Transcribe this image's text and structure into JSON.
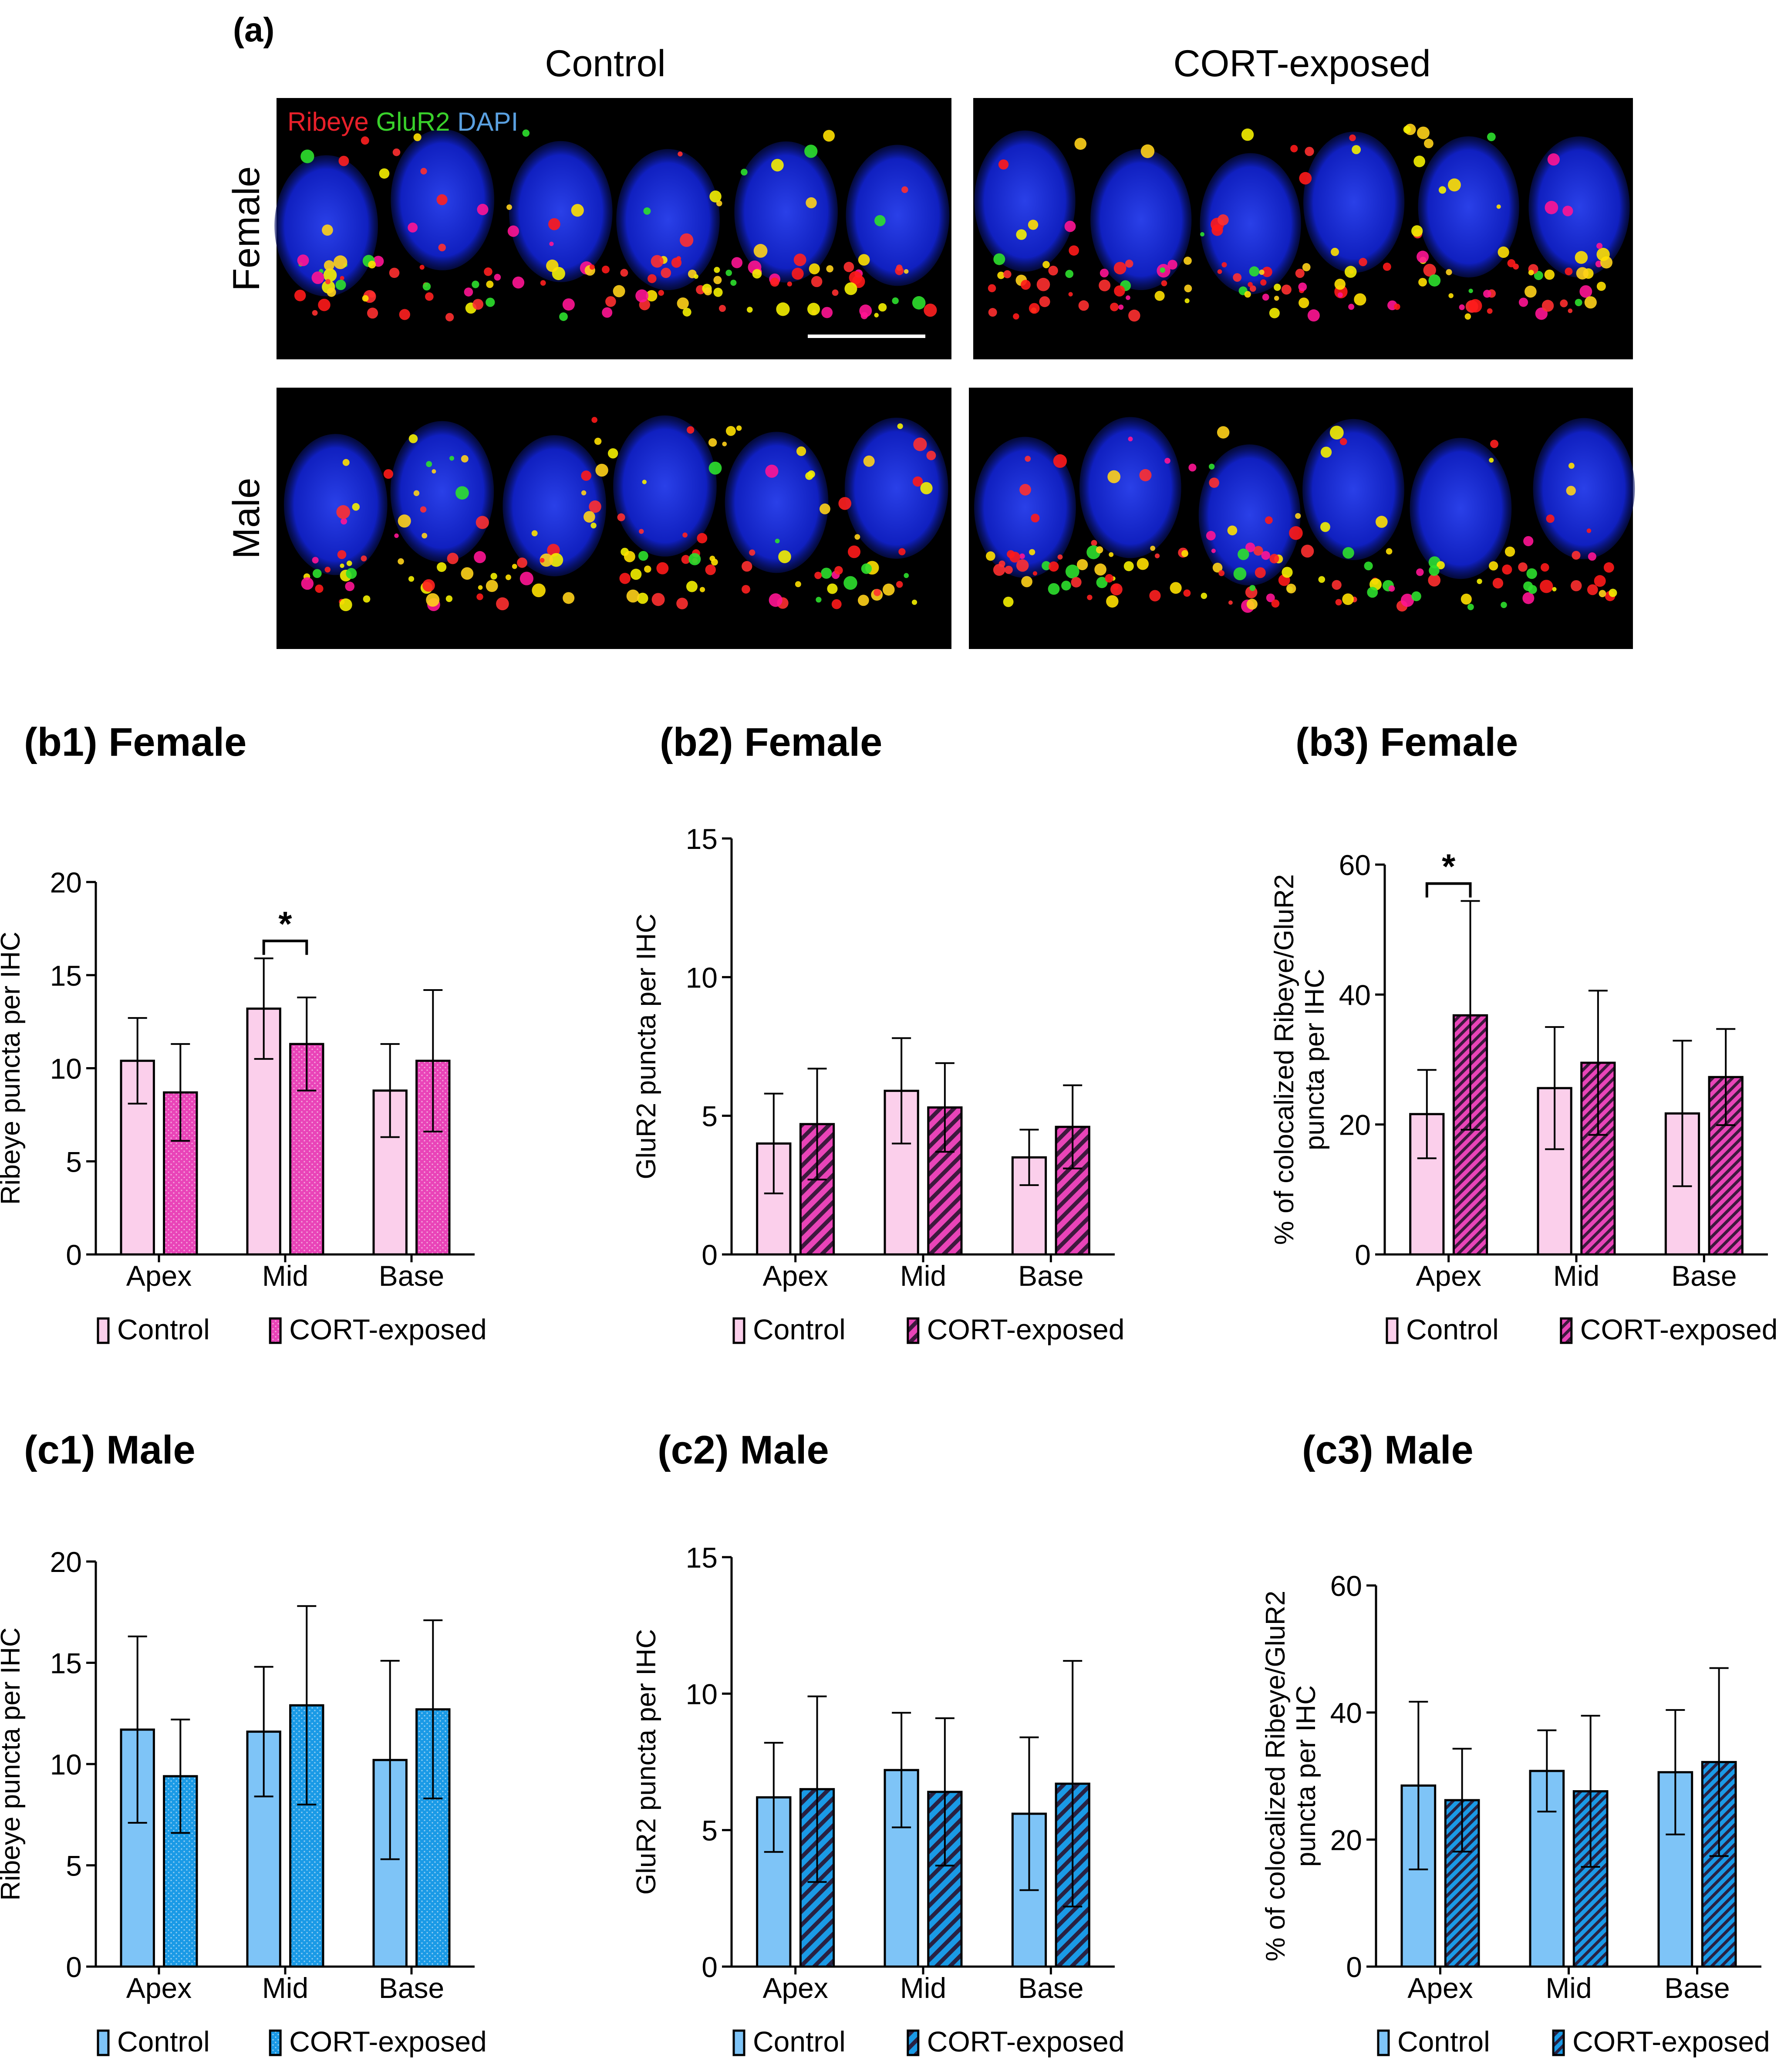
{
  "panel_a": {
    "label": "(a)",
    "columns": [
      "Control",
      "CORT-exposed"
    ],
    "rows": [
      "Female",
      "Male"
    ],
    "stain_legend": [
      {
        "text": "Ribeye",
        "color": "#e8202a"
      },
      {
        "text": "GluR2",
        "color": "#39d12b"
      },
      {
        "text": "DAPI",
        "color": "#5aa0e0"
      }
    ]
  },
  "colors": {
    "female_control": "#fbcfeb",
    "female_cort": "#e944b8",
    "male_control": "#7ec4f7",
    "male_cort": "#1a9ae6"
  },
  "chart_data": [
    {
      "id": "b1",
      "title": "(b1) Female",
      "type": "bar",
      "categories": [
        "Apex",
        "Mid",
        "Base"
      ],
      "ylabel": [
        "Ribeye puncta per IHC"
      ],
      "ylim": [
        0,
        20
      ],
      "yticks": [
        "0",
        "5",
        "10",
        "15",
        "20"
      ],
      "series": [
        {
          "name": "Control",
          "values": [
            10.4,
            13.2,
            8.8
          ],
          "errors": [
            2.3,
            2.7,
            2.5
          ],
          "color": "#fbcfeb",
          "pattern": "none"
        },
        {
          "name": "CORT-exposed",
          "values": [
            8.7,
            11.3,
            10.4
          ],
          "errors": [
            2.6,
            2.5,
            3.8
          ],
          "color": "#e944b8",
          "pattern": "dots"
        }
      ],
      "significance": [
        {
          "category": "Mid",
          "label": "*"
        }
      ]
    },
    {
      "id": "b2",
      "title": "(b2) Female",
      "type": "bar",
      "categories": [
        "Apex",
        "Mid",
        "Base"
      ],
      "ylabel": [
        "GluR2 puncta per IHC"
      ],
      "ylim": [
        0,
        15
      ],
      "yticks": [
        "0",
        "5",
        "10",
        "15"
      ],
      "series": [
        {
          "name": "Control",
          "values": [
            4.0,
            5.9,
            3.5
          ],
          "errors": [
            1.8,
            1.9,
            1.0
          ],
          "color": "#fbcfeb",
          "pattern": "none"
        },
        {
          "name": "CORT-exposed",
          "values": [
            4.7,
            5.3,
            4.6
          ],
          "errors": [
            2.0,
            1.6,
            1.5
          ],
          "color": "#e944b8",
          "pattern": "hatch"
        }
      ],
      "significance": []
    },
    {
      "id": "b3",
      "title": "(b3) Female",
      "type": "bar",
      "categories": [
        "Apex",
        "Mid",
        "Base"
      ],
      "ylabel": [
        "% of colocalized Ribeye/GluR2",
        "puncta per IHC"
      ],
      "ylim": [
        0,
        60
      ],
      "yticks": [
        "0",
        "20",
        "40",
        "60"
      ],
      "series": [
        {
          "name": "Control",
          "values": [
            21.6,
            25.6,
            21.7
          ],
          "errors": [
            6.8,
            9.4,
            11.2
          ],
          "color": "#fbcfeb",
          "pattern": "none"
        },
        {
          "name": "CORT-exposed",
          "values": [
            36.8,
            29.5,
            27.3
          ],
          "errors": [
            17.6,
            11.1,
            7.4
          ],
          "color": "#e944b8",
          "pattern": "hatch-dense"
        }
      ],
      "significance": [
        {
          "category": "Apex",
          "label": "*"
        }
      ]
    },
    {
      "id": "c1",
      "title": "(c1) Male",
      "type": "bar",
      "categories": [
        "Apex",
        "Mid",
        "Base"
      ],
      "ylabel": [
        "Ribeye puncta per IHC"
      ],
      "ylim": [
        0,
        20
      ],
      "yticks": [
        "0",
        "5",
        "10",
        "15",
        "20"
      ],
      "series": [
        {
          "name": "Control",
          "values": [
            11.7,
            11.6,
            10.2
          ],
          "errors": [
            4.6,
            3.2,
            4.9
          ],
          "color": "#7ec4f7",
          "pattern": "none"
        },
        {
          "name": "CORT-exposed",
          "values": [
            9.4,
            12.9,
            12.7
          ],
          "errors": [
            2.8,
            4.9,
            4.4
          ],
          "color": "#1a9ae6",
          "pattern": "dots"
        }
      ],
      "significance": []
    },
    {
      "id": "c2",
      "title": "(c2) Male",
      "type": "bar",
      "categories": [
        "Apex",
        "Mid",
        "Base"
      ],
      "ylabel": [
        "GluR2 puncta per IHC"
      ],
      "ylim": [
        0,
        15
      ],
      "yticks": [
        "0",
        "5",
        "10",
        "15"
      ],
      "series": [
        {
          "name": "Control",
          "values": [
            6.2,
            7.2,
            5.6
          ],
          "errors": [
            2.0,
            2.1,
            2.8
          ],
          "color": "#7ec4f7",
          "pattern": "none"
        },
        {
          "name": "CORT-exposed",
          "values": [
            6.5,
            6.4,
            6.7
          ],
          "errors": [
            3.4,
            2.7,
            4.5
          ],
          "color": "#1a9ae6",
          "pattern": "hatch"
        }
      ],
      "significance": []
    },
    {
      "id": "c3",
      "title": "(c3) Male",
      "type": "bar",
      "categories": [
        "Apex",
        "Mid",
        "Base"
      ],
      "ylabel": [
        "% of colocalized Ribeye/GluR2",
        "puncta per IHC"
      ],
      "ylim": [
        0,
        60
      ],
      "yticks": [
        "0",
        "20",
        "40",
        "60"
      ],
      "series": [
        {
          "name": "Control",
          "values": [
            28.5,
            30.8,
            30.6
          ],
          "errors": [
            13.2,
            6.4,
            9.8
          ],
          "color": "#7ec4f7",
          "pattern": "none"
        },
        {
          "name": "CORT-exposed",
          "values": [
            26.2,
            27.6,
            32.2
          ],
          "errors": [
            8.1,
            11.9,
            14.8
          ],
          "color": "#1a9ae6",
          "pattern": "hatch-dense"
        }
      ],
      "significance": []
    }
  ]
}
